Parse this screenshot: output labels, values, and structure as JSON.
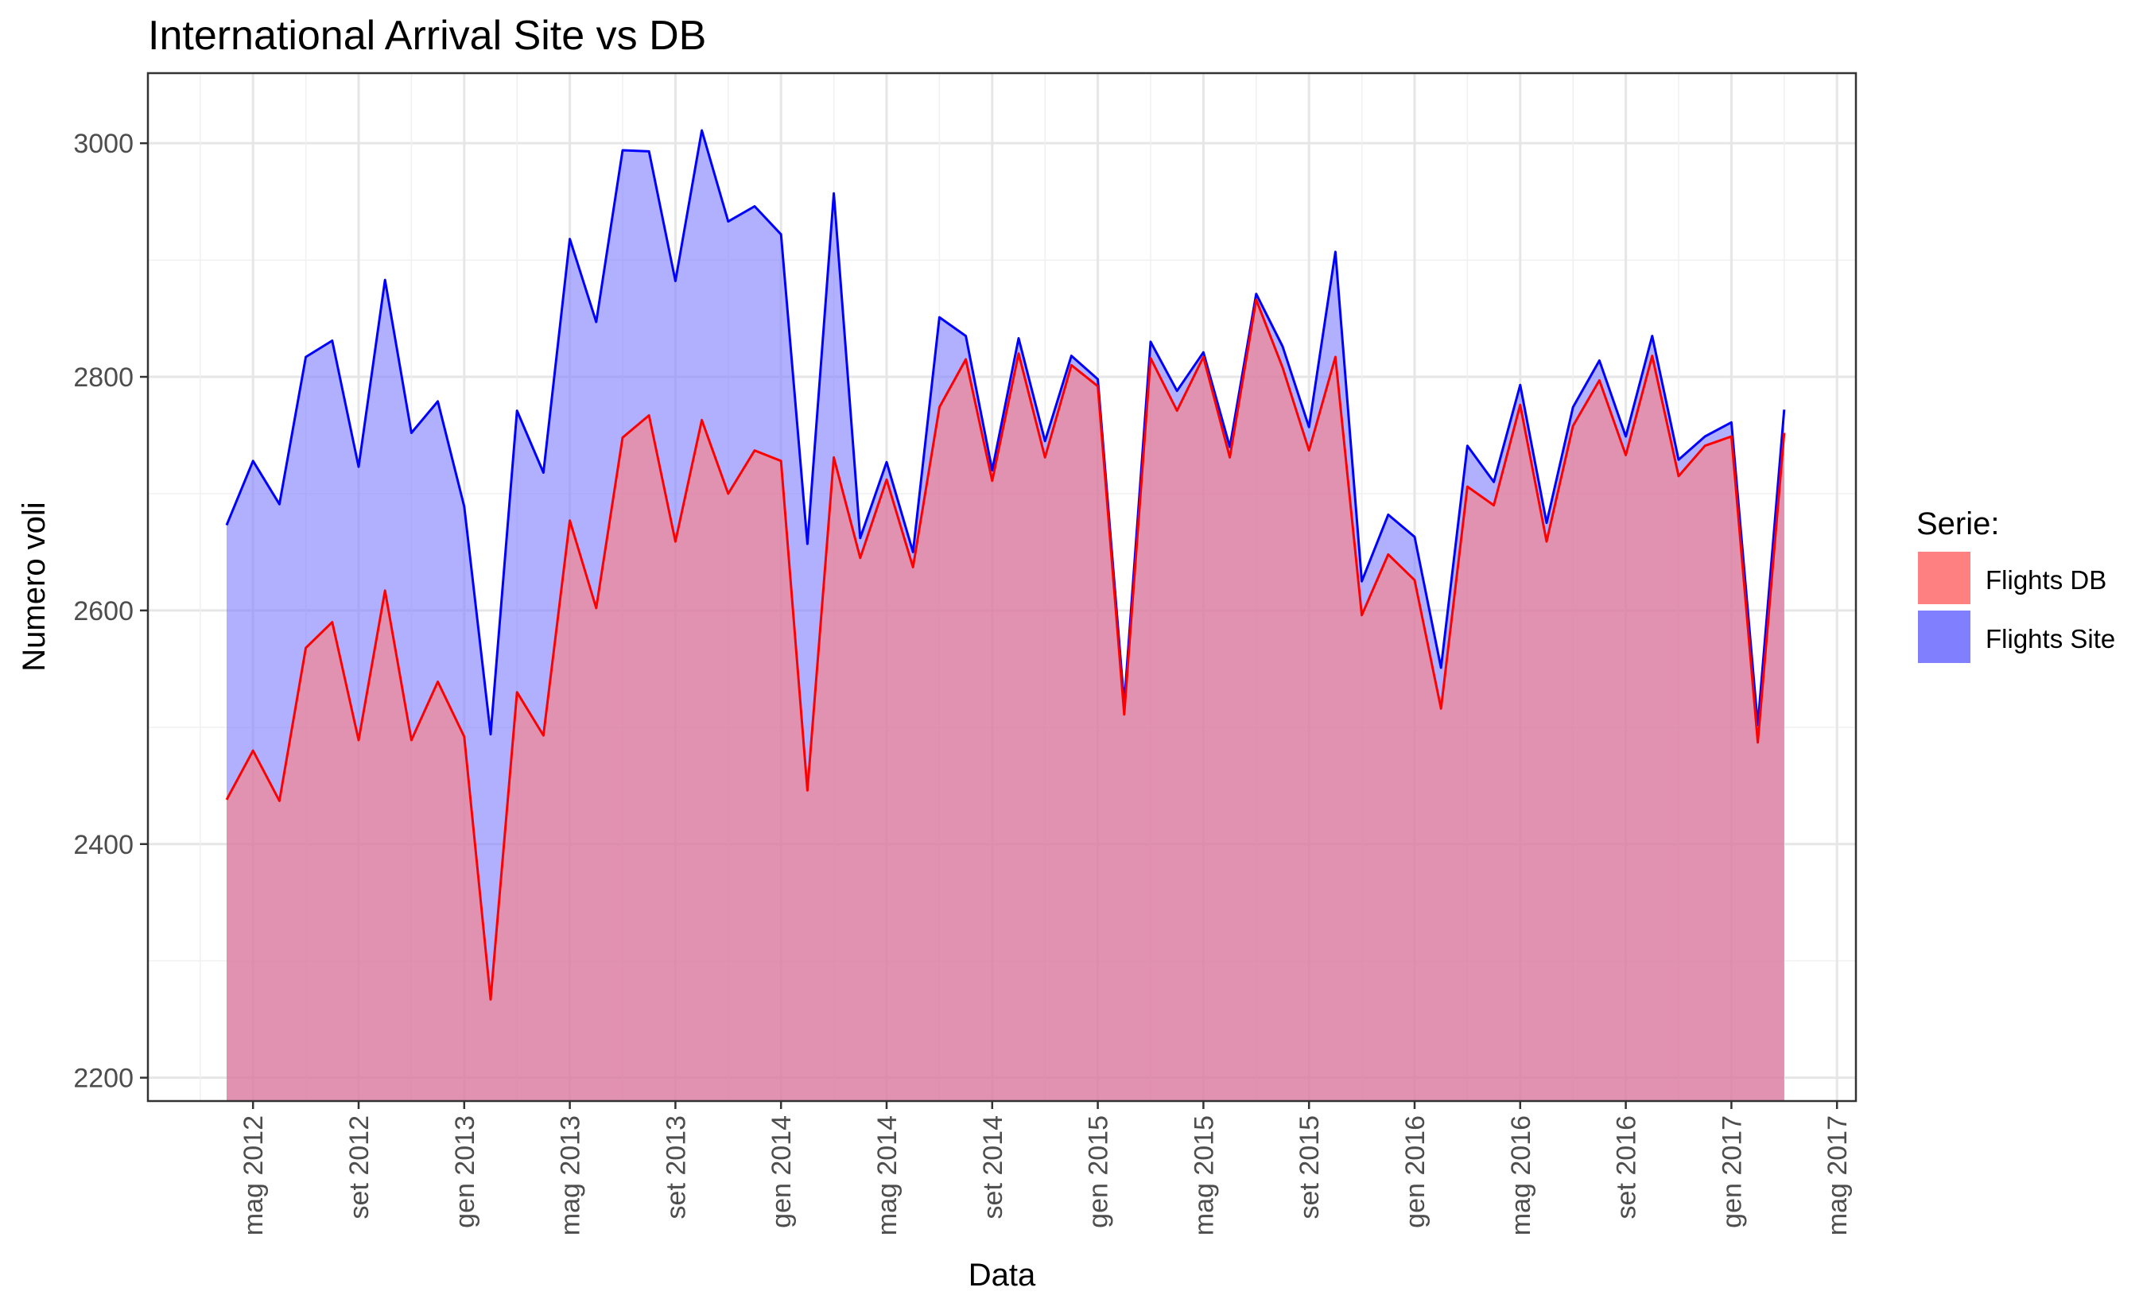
{
  "chart_data": {
    "type": "area",
    "title": "International Arrival Site vs DB",
    "xlabel": "Data",
    "ylabel": "Numero voli",
    "ylim": [
      2180,
      3060
    ],
    "yticks": [
      2200,
      2400,
      2600,
      2800,
      3000
    ],
    "x_tick_labels": [
      "mag 2012",
      "set 2012",
      "gen 2013",
      "mag 2013",
      "set 2013",
      "gen 2014",
      "mag 2014",
      "set 2014",
      "gen 2015",
      "mag 2015",
      "set 2015",
      "gen 2016",
      "mag 2016",
      "set 2016",
      "gen 2017",
      "mag 2017"
    ],
    "x_start": "2012-04",
    "grid": true,
    "legend_position": "right",
    "legend_title": "Serie:",
    "series": [
      {
        "name": "Flights DB",
        "color": "#ff0000",
        "fill": "#ff8080",
        "values": [
          2438,
          2480,
          2437,
          2568,
          2590,
          2489,
          2617,
          2489,
          2539,
          2492,
          2267,
          2530,
          2493,
          2677,
          2602,
          2748,
          2767,
          2659,
          2763,
          2700,
          2737,
          2728,
          2446,
          2731,
          2645,
          2712,
          2637,
          2774,
          2815,
          2711,
          2820,
          2731,
          2810,
          2792,
          2511,
          2816,
          2771,
          2817,
          2731,
          2866,
          2808,
          2737,
          2817,
          2596,
          2648,
          2626,
          2516,
          2706,
          2690,
          2776,
          2659,
          2758,
          2797,
          2733,
          2818,
          2715,
          2741,
          2749,
          2487,
          2752
        ]
      },
      {
        "name": "Flights Site",
        "color": "#0000ff",
        "fill": "#8080ff",
        "values": [
          2673,
          2728,
          2691,
          2817,
          2831,
          2723,
          2883,
          2752,
          2779,
          2689,
          2494,
          2771,
          2718,
          2918,
          2847,
          2994,
          2993,
          2882,
          3011,
          2933,
          2946,
          2922,
          2657,
          2957,
          2662,
          2727,
          2650,
          2851,
          2835,
          2720,
          2833,
          2745,
          2818,
          2798,
          2520,
          2830,
          2788,
          2821,
          2740,
          2871,
          2826,
          2757,
          2907,
          2625,
          2682,
          2663,
          2551,
          2741,
          2710,
          2793,
          2675,
          2774,
          2814,
          2749,
          2835,
          2729,
          2749,
          2761,
          2502,
          2772
        ]
      }
    ]
  }
}
